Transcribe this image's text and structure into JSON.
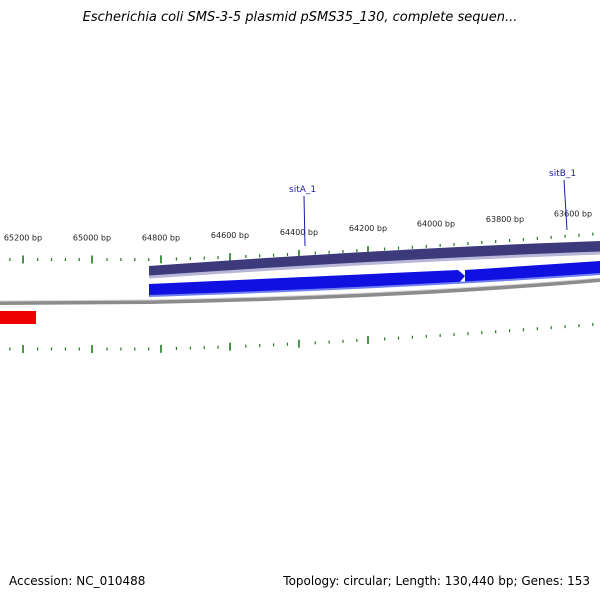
{
  "title": "Escherichia coli SMS-3-5 plasmid pSMS35_130, complete sequen...",
  "footer": {
    "accession": "Accession: NC_010488",
    "summary": "Topology: circular; Length: 130,440 bp; Genes: 153"
  },
  "colors": {
    "backbone": "#8c8c8c",
    "gene_forward": "#1010e0",
    "gene_reverse": "#3d3a7c",
    "other_feature": "#ee0000",
    "tick": "#1f7a1f",
    "gene_label": "#1a1aa8"
  },
  "ticks": {
    "labels": [
      "65200 bp",
      "65000 bp",
      "64800 bp",
      "64600 bp",
      "64400 bp",
      "64200 bp",
      "64000 bp",
      "63800 bp",
      "63600 bp"
    ]
  },
  "genes": [
    {
      "label": "sitA_1",
      "strand": "reverse"
    },
    {
      "label": "sitB_1",
      "strand": "reverse"
    }
  ]
}
